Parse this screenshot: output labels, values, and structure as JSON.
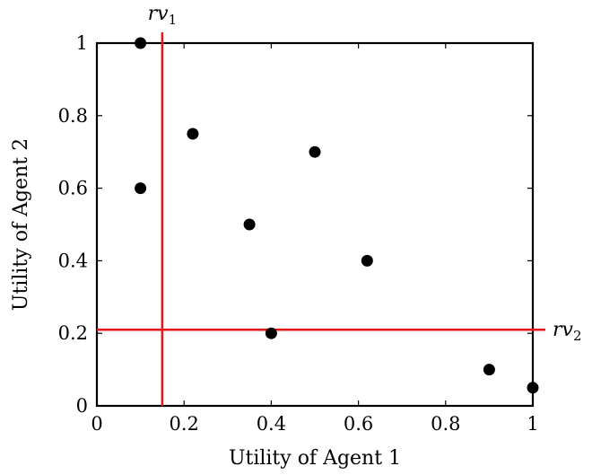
{
  "chart_data": {
    "type": "scatter",
    "xlabel": "Utility of Agent 1",
    "ylabel": "Utility of Agent 2",
    "xlim": [
      0,
      1
    ],
    "ylim": [
      0,
      1
    ],
    "x_ticks": [
      "0",
      "0.2",
      "0.4",
      "0.6",
      "0.8",
      "1"
    ],
    "y_ticks": [
      "0",
      "0.2",
      "0.4",
      "0.6",
      "0.8",
      "1"
    ],
    "grid": false,
    "series": [
      {
        "color": "#000000",
        "points": [
          {
            "x": 0.1,
            "y": 1.0
          },
          {
            "x": 0.1,
            "y": 0.6
          },
          {
            "x": 0.22,
            "y": 0.75
          },
          {
            "x": 0.35,
            "y": 0.5
          },
          {
            "x": 0.4,
            "y": 0.2
          },
          {
            "x": 0.5,
            "y": 0.7
          },
          {
            "x": 0.62,
            "y": 0.4
          },
          {
            "x": 0.9,
            "y": 0.1
          },
          {
            "x": 1.0,
            "y": 0.05
          }
        ]
      }
    ],
    "reference_lines": [
      {
        "label_base": "rv",
        "label_sub": "1",
        "orientation": "vertical",
        "value": 0.15,
        "color": "#e31a1c"
      },
      {
        "label_base": "rv",
        "label_sub": "2",
        "orientation": "horizontal",
        "value": 0.21,
        "color": "#e31a1c"
      }
    ]
  }
}
